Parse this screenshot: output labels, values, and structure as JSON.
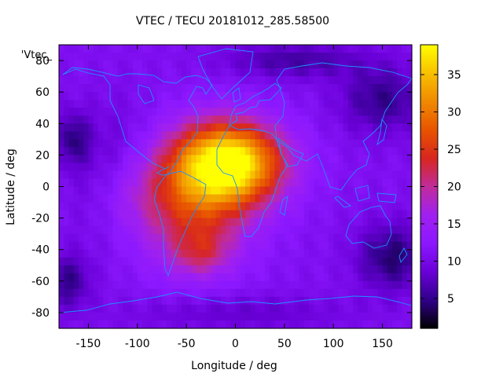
{
  "chart_data": {
    "type": "heatmap",
    "title": "VTEC / TECU 20181012_285.58500",
    "xlabel": "Longitude / deg",
    "ylabel": "Latitude / deg",
    "key_label": "'Vtec_",
    "xlim": [
      -180,
      180
    ],
    "ylim": [
      -90,
      90
    ],
    "x_ticks": [
      -150,
      -100,
      -50,
      0,
      50,
      100,
      150
    ],
    "y_ticks": [
      -80,
      -60,
      -40,
      -20,
      0,
      20,
      40,
      60,
      80
    ],
    "colorbar": {
      "range": [
        1,
        39
      ],
      "ticks": [
        5,
        10,
        15,
        20,
        25,
        30,
        35
      ],
      "palette": [
        "#000000",
        "#30008a",
        "#6a00d8",
        "#8c18ff",
        "#a020f0",
        "#c02c9a",
        "#d8261f",
        "#e85400",
        "#f08a00",
        "#f8c000",
        "#ffff00"
      ]
    },
    "background_vtec": 11,
    "grid_resolution_deg": {
      "lon": 5,
      "lat": 5
    },
    "features": [
      {
        "lon": -5,
        "lat": 15,
        "peak": 27,
        "sx": 38,
        "sy": 18
      },
      {
        "lon": -45,
        "lat": -10,
        "peak": 13,
        "sx": 42,
        "sy": 28
      },
      {
        "lon": -35,
        "lat": -42,
        "peak": 6,
        "sx": 20,
        "sy": 10
      },
      {
        "lon": -110,
        "lat": -5,
        "peak": 4,
        "sx": 25,
        "sy": 18
      },
      {
        "lon": -120,
        "lat": 5,
        "peak": -4,
        "sx": 30,
        "sy": 30
      },
      {
        "lon": 150,
        "lat": 55,
        "peak": -6,
        "sx": 30,
        "sy": 15
      },
      {
        "lon": -165,
        "lat": 30,
        "peak": -6,
        "sx": 12,
        "sy": 12
      },
      {
        "lon": 160,
        "lat": -45,
        "peak": -7,
        "sx": 25,
        "sy": 15
      },
      {
        "lon": -170,
        "lat": -60,
        "peak": -6,
        "sx": 15,
        "sy": 12
      },
      {
        "lon": 60,
        "lat": 80,
        "peak": -5,
        "sx": 50,
        "sy": 8
      },
      {
        "lon": 0,
        "lat": -80,
        "peak": -3,
        "sx": 80,
        "sy": 8
      }
    ]
  }
}
